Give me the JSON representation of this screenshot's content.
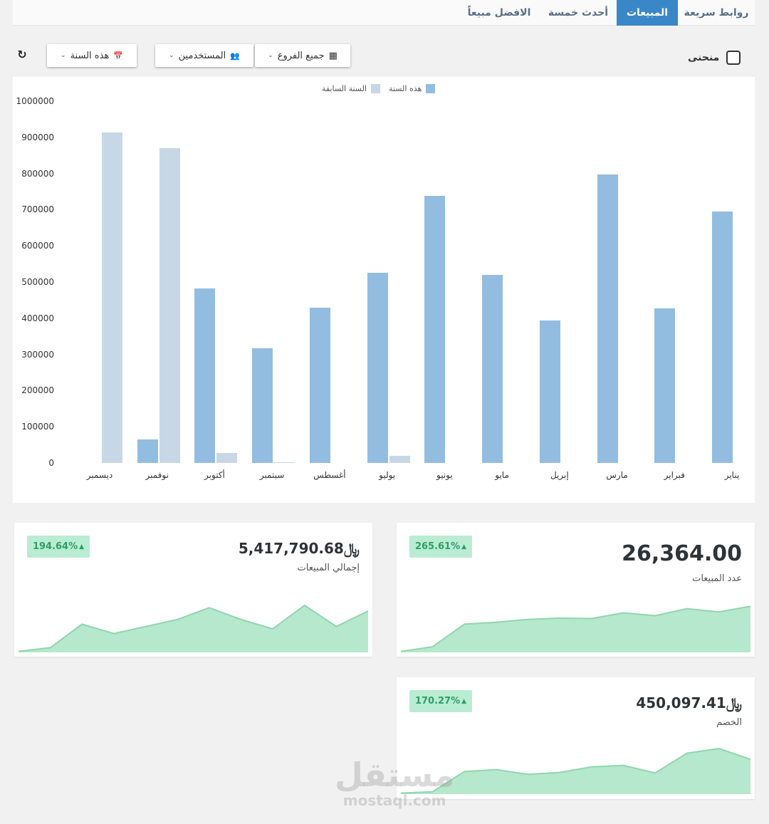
{
  "tabs": [
    {
      "label": "روابط سريعة",
      "active": false
    },
    {
      "label": "المبيعات",
      "active": true
    },
    {
      "label": "أحدث خمسة",
      "active": false
    },
    {
      "label": "الافضل مبيعاً",
      "active": false
    }
  ],
  "toolbar": {
    "curve_label": "منحنى",
    "branches_label": "جميع الفروع",
    "users_label": "المستخدمين",
    "period_label": "هذه السنة",
    "caret": "⌄",
    "refresh_icon": "↻",
    "branch_icon": "▦",
    "users_icon": "👥",
    "calendar_icon": "📅"
  },
  "chart_data": {
    "type": "bar",
    "categories": [
      "يناير",
      "فبراير",
      "مارس",
      "إبريل",
      "مايو",
      "يونيو",
      "يوليو",
      "أغسطس",
      "سبتمبر",
      "أكتوبر",
      "نوفمبر",
      "ديسمبر"
    ],
    "series": [
      {
        "name": "هذه السنة",
        "color": "#93bde0",
        "values": [
          694000,
          427000,
          798000,
          394000,
          520000,
          739000,
          526000,
          429000,
          316000,
          483000,
          64000,
          0
        ]
      },
      {
        "name": "السنة السابقة",
        "color": "#c7d7e5",
        "values": [
          0,
          0,
          0,
          0,
          0,
          0,
          19000,
          0,
          2000,
          27000,
          870000,
          914000
        ]
      }
    ],
    "yticks": [
      "1000000",
      "900000",
      "800000",
      "700000",
      "600000",
      "500000",
      "400000",
      "300000",
      "200000",
      "100000",
      "0"
    ],
    "ylim": [
      0,
      1000000
    ],
    "legend_position": "top-center",
    "xlabel": "",
    "ylabel": ""
  },
  "stats": {
    "total_sales": {
      "value": "5,417,790.68",
      "label": "إجمالي المبيعات",
      "change": "194.64%",
      "currency_icon": "﷼",
      "trend": [
        0.02,
        0.1,
        0.6,
        0.4,
        0.55,
        0.7,
        0.95,
        0.7,
        0.5,
        1.0,
        0.55,
        0.88
      ]
    },
    "sales_count": {
      "value": "26,364.00",
      "label": "عدد المبيعات",
      "change": "265.61%",
      "trend": [
        0.02,
        0.12,
        0.6,
        0.64,
        0.7,
        0.73,
        0.72,
        0.84,
        0.78,
        0.93,
        0.86,
        0.98
      ]
    },
    "discount": {
      "value": "450,097.41",
      "label": "الخصم",
      "change": "170.27%",
      "currency_icon": "﷼",
      "trend": [
        0.02,
        0.05,
        0.48,
        0.52,
        0.42,
        0.46,
        0.58,
        0.61,
        0.45,
        0.87,
        0.97,
        0.74
      ]
    }
  },
  "colors": {
    "accent": "#3a87c8",
    "badge_bg": "#b9ecd3",
    "badge_text": "#2f9d68",
    "spark_fill": "#b5e8cc",
    "spark_line": "#8fd6ae"
  },
  "watermark": {
    "main": "مستقل",
    "sub": "mostaql.com"
  }
}
